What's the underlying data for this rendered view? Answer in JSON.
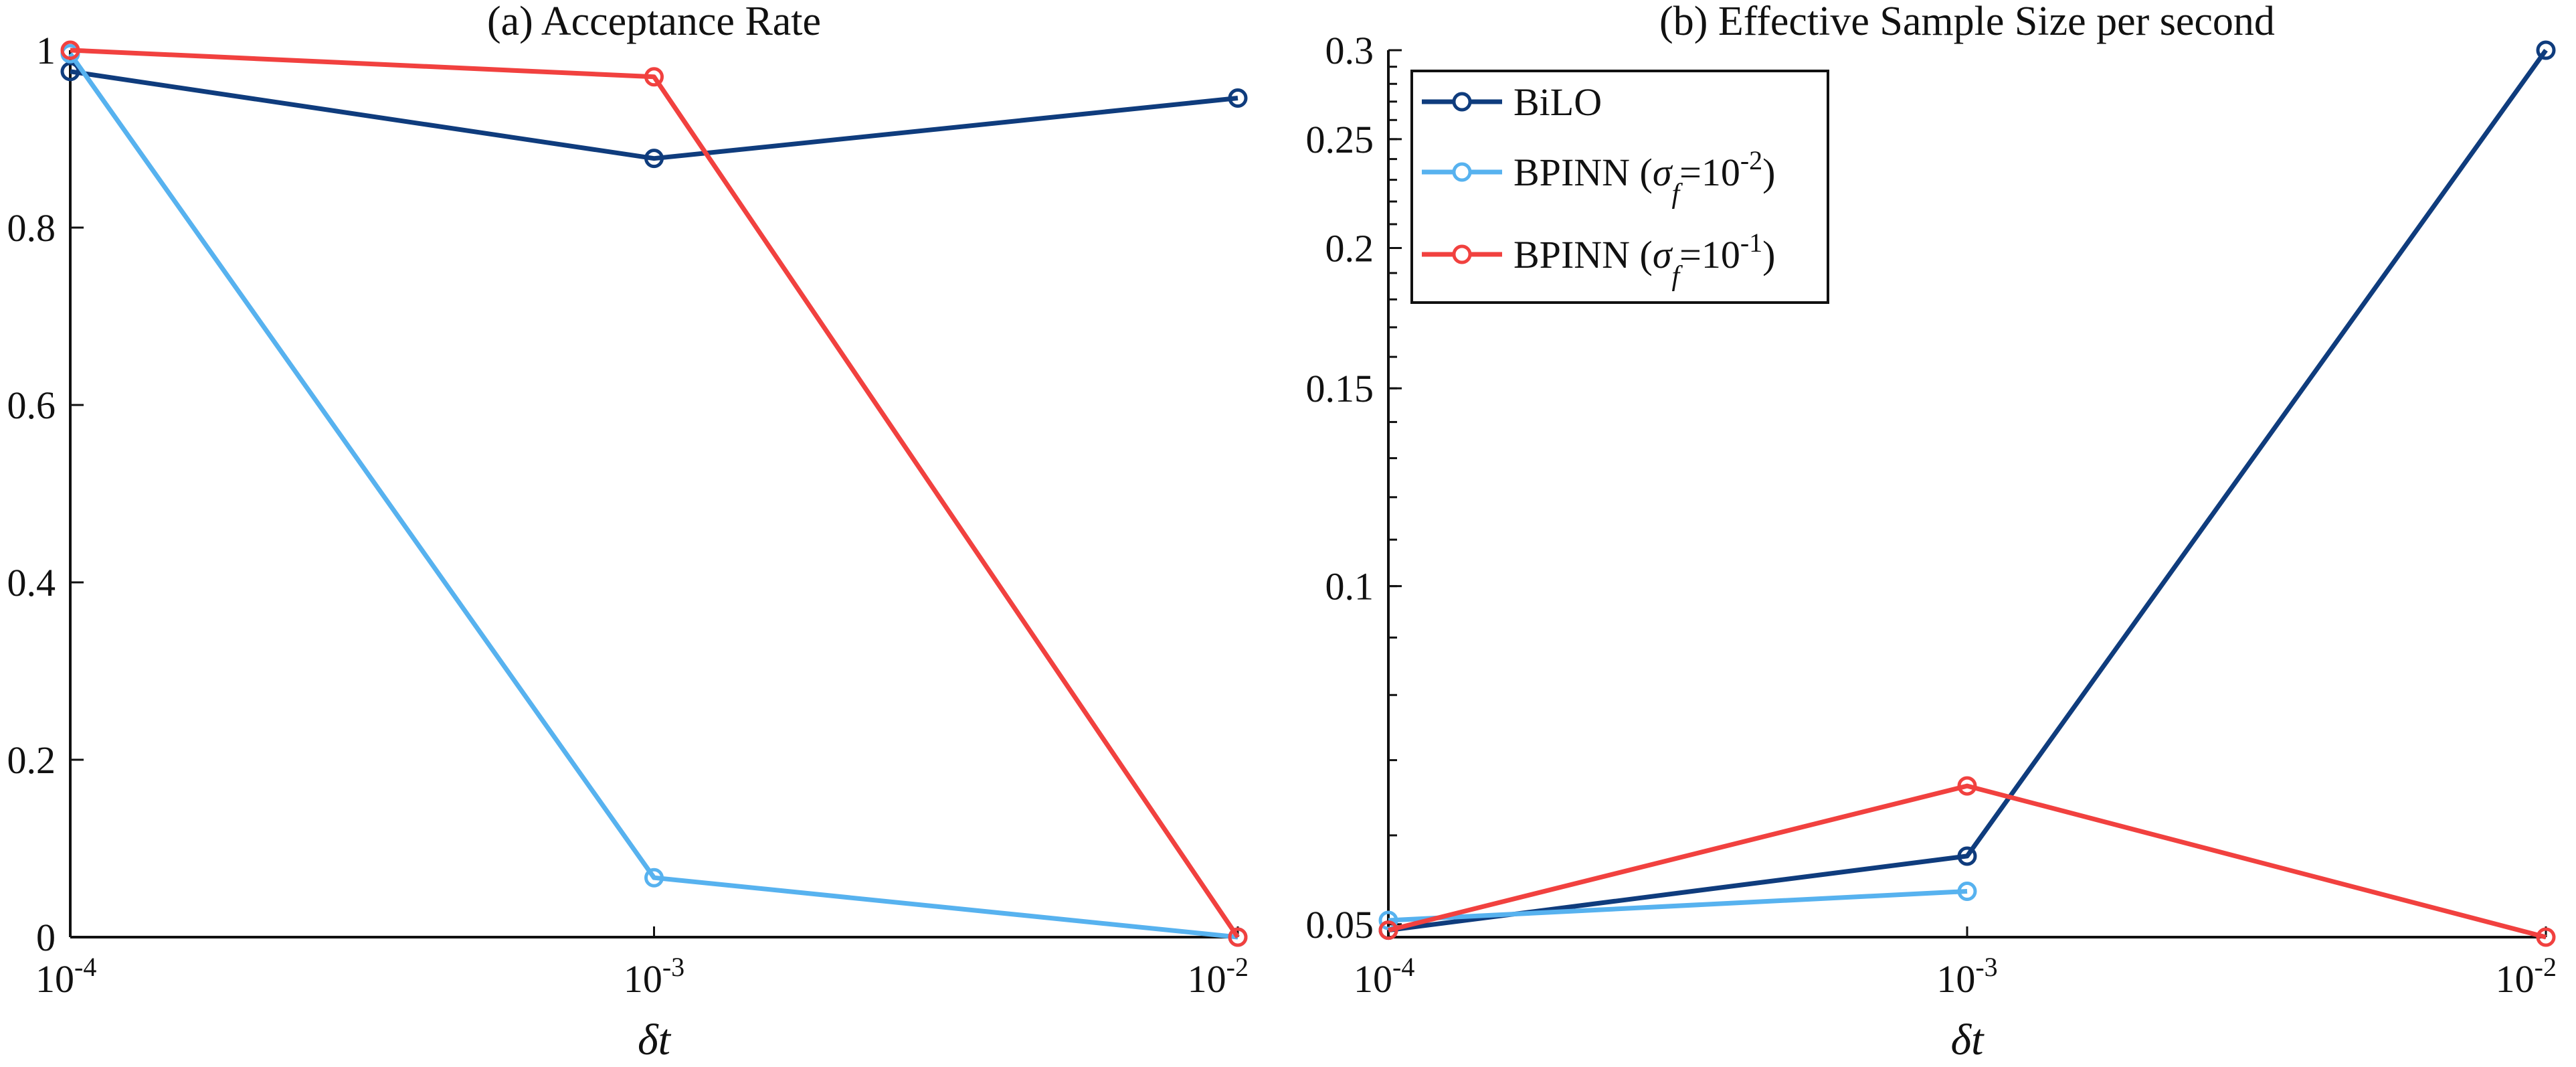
{
  "chart_data": [
    {
      "type": "line",
      "title": "(a) Acceptance Rate",
      "xlabel": "δt",
      "ylabel": "",
      "x_scale": "log",
      "xlim": [
        0.0001,
        0.01
      ],
      "ylim": [
        0,
        1
      ],
      "x": [
        0.0001,
        0.001,
        0.01
      ],
      "xtick_labels": [
        {
          "base": "10",
          "exp": "-4"
        },
        {
          "base": "10",
          "exp": "-3"
        },
        {
          "base": "10",
          "exp": "-2"
        }
      ],
      "ytick_labels": [
        "0",
        "0.2",
        "0.4",
        "0.6",
        "0.8",
        "1"
      ],
      "series": [
        {
          "name": "BiLO",
          "color": "#0f3c7d",
          "values": [
            0.976,
            0.878,
            0.946
          ]
        },
        {
          "name": "BPINN (σf=10-2)",
          "color": "#57b2ef",
          "values": [
            0.996,
            0.067,
            0.0
          ]
        },
        {
          "name": "BPINN (σf=10-1)",
          "color": "#f1413f",
          "values": [
            1.0,
            0.97,
            0.0
          ]
        }
      ]
    },
    {
      "type": "line",
      "title": "(b) Effective Sample Size per second",
      "xlabel": "δt",
      "ylabel": "",
      "x_scale": "log",
      "y_scale": "log",
      "xlim": [
        0.0001,
        0.01
      ],
      "ylim": [
        0.0487,
        0.3
      ],
      "x": [
        0.0001,
        0.001,
        0.01
      ],
      "xtick_labels": [
        {
          "base": "10",
          "exp": "-4"
        },
        {
          "base": "10",
          "exp": "-3"
        },
        {
          "base": "10",
          "exp": "-2"
        }
      ],
      "ytick_labels": [
        "0.05",
        "0.1",
        "0.15",
        "0.2",
        "0.25",
        "0.3"
      ],
      "legend": {
        "location": "top-left",
        "entries": [
          {
            "label": "BiLO",
            "base": "BiLO",
            "sub": "",
            "sup": "",
            "tail": ""
          },
          {
            "label": "BPINN (σf=10-2)",
            "base": "BPINN (",
            "sub": "f",
            "sup": "-2",
            "tail": ")"
          },
          {
            "label": "BPINN (σf=10-1)",
            "base": "BPINN (",
            "sub": "f",
            "sup": "-1",
            "tail": ")"
          }
        ]
      },
      "series": [
        {
          "name": "BiLO",
          "color": "#0f3c7d",
          "values": [
            0.0494,
            0.0575,
            0.3
          ]
        },
        {
          "name": "BPINN (σf=10-2)",
          "color": "#57b2ef",
          "values": [
            0.0504,
            0.0535,
            null
          ]
        },
        {
          "name": "BPINN (σf=10-1)",
          "color": "#f1413f",
          "values": [
            0.0494,
            0.0664,
            0.0487
          ]
        }
      ]
    }
  ]
}
